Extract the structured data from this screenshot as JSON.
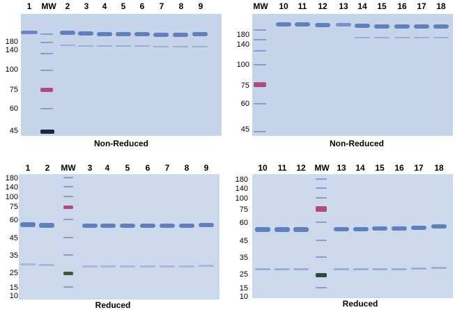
{
  "panels": [
    {
      "id": "top-left",
      "caption": "Non-Reduced",
      "lanes": [
        "1",
        "MW",
        "2",
        "3",
        "4",
        "5",
        "6",
        "7",
        "8",
        "9"
      ],
      "mw_markers": [
        "180",
        "140",
        "100",
        "75",
        "60",
        "45"
      ]
    },
    {
      "id": "top-right",
      "caption": "Non-Reduced",
      "lanes": [
        "MW",
        "10",
        "11",
        "12",
        "13",
        "14",
        "15",
        "16",
        "17",
        "18"
      ],
      "mw_markers": [
        "180",
        "140",
        "100",
        "75",
        "60",
        "45"
      ]
    },
    {
      "id": "bottom-left",
      "caption": "Reduced",
      "lanes": [
        "1",
        "2",
        "MW",
        "3",
        "4",
        "5",
        "6",
        "7",
        "8",
        "9"
      ],
      "mw_markers": [
        "180",
        "140",
        "100",
        "75",
        "60",
        "45",
        "35",
        "25",
        "15",
        "10"
      ]
    },
    {
      "id": "bottom-right",
      "caption": "Reduced",
      "lanes": [
        "10",
        "11",
        "12",
        "MW",
        "13",
        "14",
        "15",
        "16",
        "17",
        "18"
      ],
      "mw_markers": [
        "180",
        "140",
        "100",
        "75",
        "60",
        "45",
        "35",
        "25",
        "15",
        "10"
      ]
    }
  ],
  "colors": {
    "gel": "#c6d4ea",
    "band": "#5f7fbf",
    "ladder": "#7f95c9",
    "ladder_pink": "#b04a7a",
    "ladder_dark": "#1a2a3a"
  }
}
